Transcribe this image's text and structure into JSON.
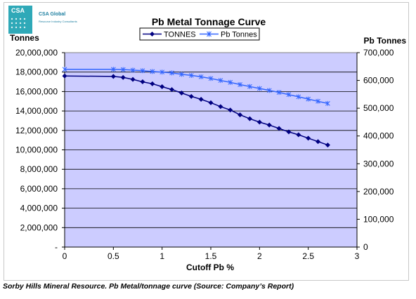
{
  "logo": {
    "abbr": "CSA",
    "name": "CSA Global",
    "tagline": "Resource Industry Consultants"
  },
  "caption": "Sorby Hills Mineral Resource. Pb Metal/tonnage curve (Source: Company’s Report)",
  "chart_data": {
    "type": "line",
    "title": "Pb Metal Tonnage Curve",
    "xlabel": "Cutoff Pb %",
    "ylabel_left": "Tonnes",
    "ylabel_right": "Pb Tonnes",
    "xlim": [
      0,
      3
    ],
    "ylim_left": [
      0,
      20000000
    ],
    "ylim_right": [
      0,
      700000
    ],
    "x_ticks": [
      "0",
      "0.5",
      "1",
      "1.5",
      "2",
      "2.5",
      "3"
    ],
    "y_ticks_left": [
      "-",
      "2,000,000",
      "4,000,000",
      "6,000,000",
      "8,000,000",
      "10,000,000",
      "12,000,000",
      "14,000,000",
      "16,000,000",
      "18,000,000",
      "20,000,000"
    ],
    "y_ticks_right": [
      "0",
      "100,000",
      "200,000",
      "300,000",
      "400,000",
      "500,000",
      "600,000",
      "700,000"
    ],
    "grid": "horizontal",
    "legend_position": "top",
    "plot_background": "#ccccff",
    "series": [
      {
        "name": "TONNES",
        "axis": "left",
        "color": "#000080",
        "marker": "diamond",
        "x": [
          0,
          0.5,
          0.6,
          0.7,
          0.8,
          0.9,
          1.0,
          1.1,
          1.2,
          1.3,
          1.4,
          1.5,
          1.6,
          1.7,
          1.8,
          1.9,
          2.0,
          2.1,
          2.2,
          2.3,
          2.4,
          2.5,
          2.6,
          2.7
        ],
        "values": [
          17600000,
          17550000,
          17450000,
          17250000,
          17000000,
          16800000,
          16500000,
          16200000,
          15850000,
          15500000,
          15200000,
          14850000,
          14450000,
          14100000,
          13600000,
          13200000,
          12850000,
          12550000,
          12200000,
          11850000,
          11550000,
          11200000,
          10850000,
          10500000
        ]
      },
      {
        "name": "Pb Tonnes",
        "axis": "right",
        "color": "#3366ff",
        "marker": "asterisk",
        "x": [
          0,
          0.5,
          0.6,
          0.7,
          0.8,
          0.9,
          1.0,
          1.1,
          1.2,
          1.3,
          1.4,
          1.5,
          1.6,
          1.7,
          1.8,
          1.9,
          2.0,
          2.1,
          2.2,
          2.3,
          2.4,
          2.5,
          2.6,
          2.7
        ],
        "values": [
          640000,
          640000,
          639000,
          637000,
          635000,
          632000,
          630000,
          627000,
          622000,
          618000,
          613000,
          607000,
          600000,
          593000,
          585000,
          578000,
          571000,
          564000,
          557000,
          549000,
          541000,
          533000,
          525000,
          517000
        ]
      }
    ]
  }
}
